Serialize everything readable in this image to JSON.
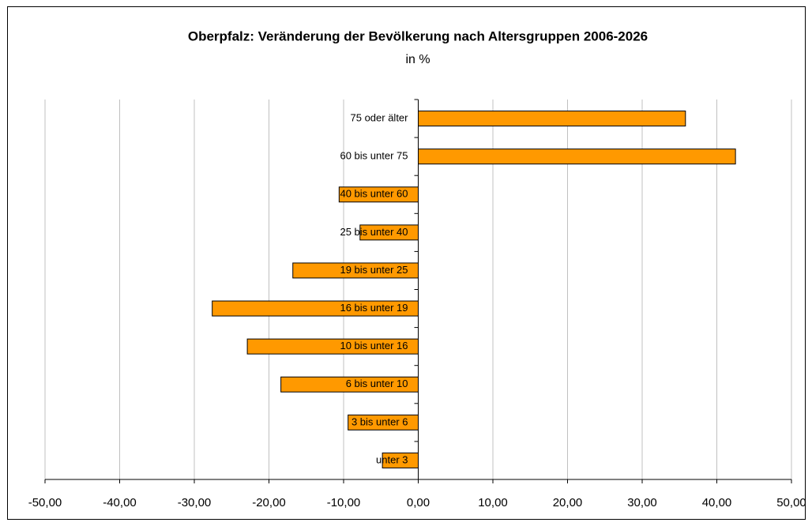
{
  "chart_data": {
    "type": "bar",
    "orientation": "horizontal",
    "title": "Oberpfalz: Veränderung der Bevölkerung nach Altersgruppen 2006-2026",
    "subtitle": "in %",
    "categories": [
      "75 oder älter",
      "60 bis unter 75",
      "40 bis unter 60",
      "25 bis unter 40",
      "19 bis unter 25",
      "16 bis unter 19",
      "10 bis unter 16",
      "6 bis unter 10",
      "3 bis unter 6",
      "unter 3"
    ],
    "values": [
      35.8,
      42.5,
      -10.6,
      -7.8,
      -16.8,
      -27.6,
      -22.9,
      -18.4,
      -9.4,
      -4.8
    ],
    "color": "#ff9900",
    "xlim": [
      -50,
      50
    ],
    "xticks": [
      {
        "value": -50,
        "label": "-50,00"
      },
      {
        "value": -40,
        "label": "-40,00"
      },
      {
        "value": -30,
        "label": "-30,00"
      },
      {
        "value": -20,
        "label": "-20,00"
      },
      {
        "value": -10,
        "label": "-10,00"
      },
      {
        "value": 0,
        "label": "0,00"
      },
      {
        "value": 10,
        "label": "10,00"
      },
      {
        "value": 20,
        "label": "20,00"
      },
      {
        "value": 30,
        "label": "30,00"
      },
      {
        "value": 40,
        "label": "40,00"
      },
      {
        "value": 50,
        "label": "50,00"
      }
    ],
    "grid": true
  }
}
